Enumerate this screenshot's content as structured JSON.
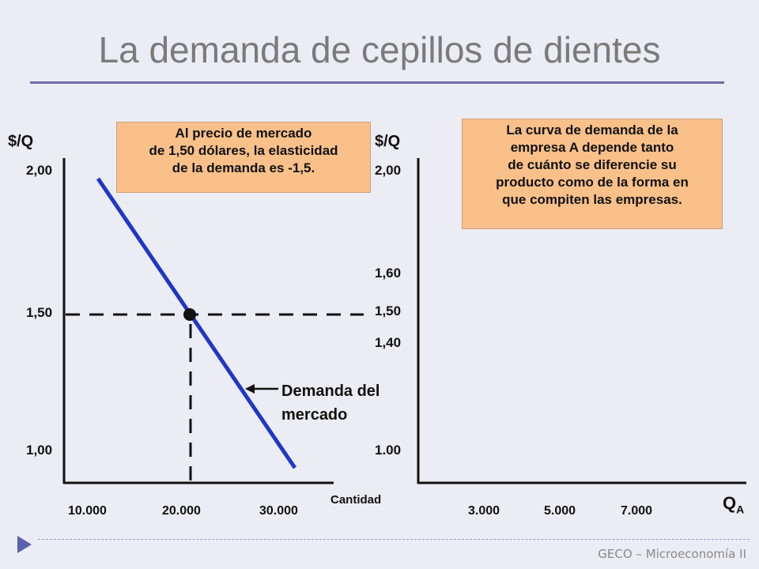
{
  "title": "La demanda de cepillos de dientes",
  "left_note": [
    "Al precio de mercado",
    "de 1,50 dólares, la elasticidad",
    "de  la demanda es -1,5."
  ],
  "right_note": [
    "La curva de demanda de la",
    "empresa A depende tanto",
    "de cuánto se diferencie su",
    "producto como de la forma en",
    "que compiten las empresas."
  ],
  "left_panel": {
    "y_axis_label": "$/Q",
    "y_ticks": [
      "2,00",
      "1,50",
      "1,00"
    ],
    "x_ticks": [
      "10.000",
      "20.000",
      "30.000"
    ],
    "x_axis_label": "Cantidad",
    "curve_label": [
      "Demanda del",
      "mercado"
    ]
  },
  "right_panel": {
    "y_axis_label": "$/Q",
    "y_ticks": [
      "2,00",
      "1,60",
      "1,50",
      "1,40",
      "1.00"
    ],
    "x_ticks": [
      "3.000",
      "5.000",
      "7.000"
    ],
    "x_axis_label": "Q",
    "x_axis_subscript": "A"
  },
  "colors": {
    "curve": "#1f36c8",
    "note_fill": "#f9c08a",
    "accent": "#6b6fa8"
  },
  "footer": "GECO – Microeconomía II"
}
